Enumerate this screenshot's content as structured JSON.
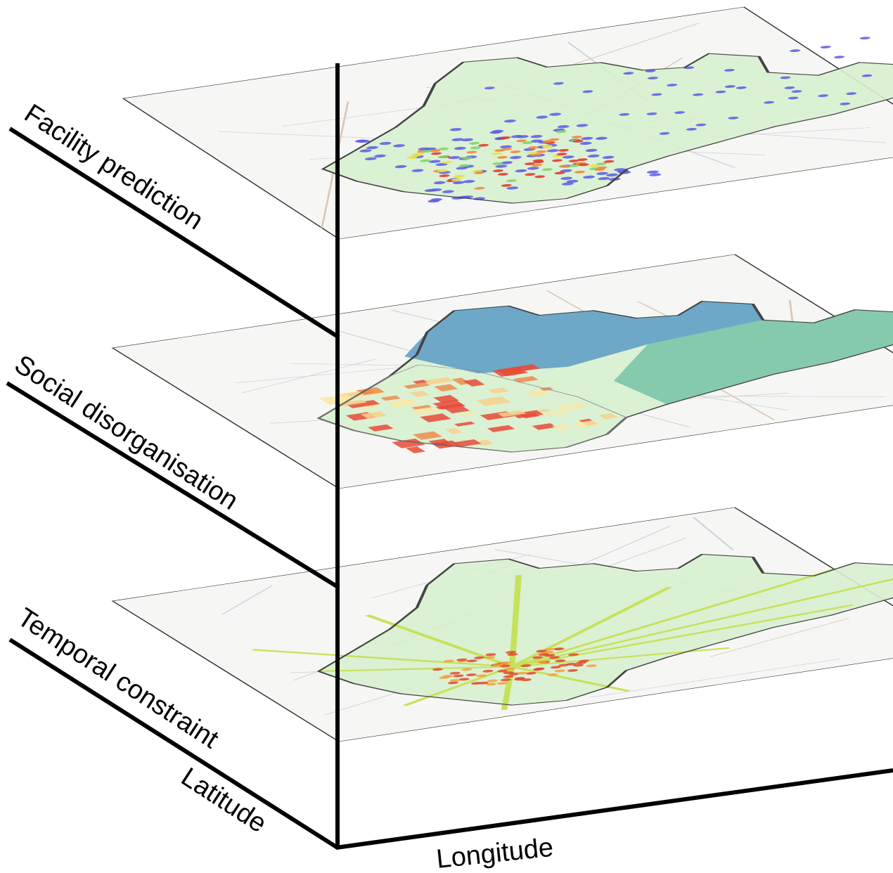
{
  "layers": [
    {
      "label": "Facility prediction"
    },
    {
      "label": "Social disorganisation"
    },
    {
      "label": "Temporal constraint"
    }
  ],
  "axes": {
    "latitude": "Latitude",
    "longitude": "Longitude"
  }
}
